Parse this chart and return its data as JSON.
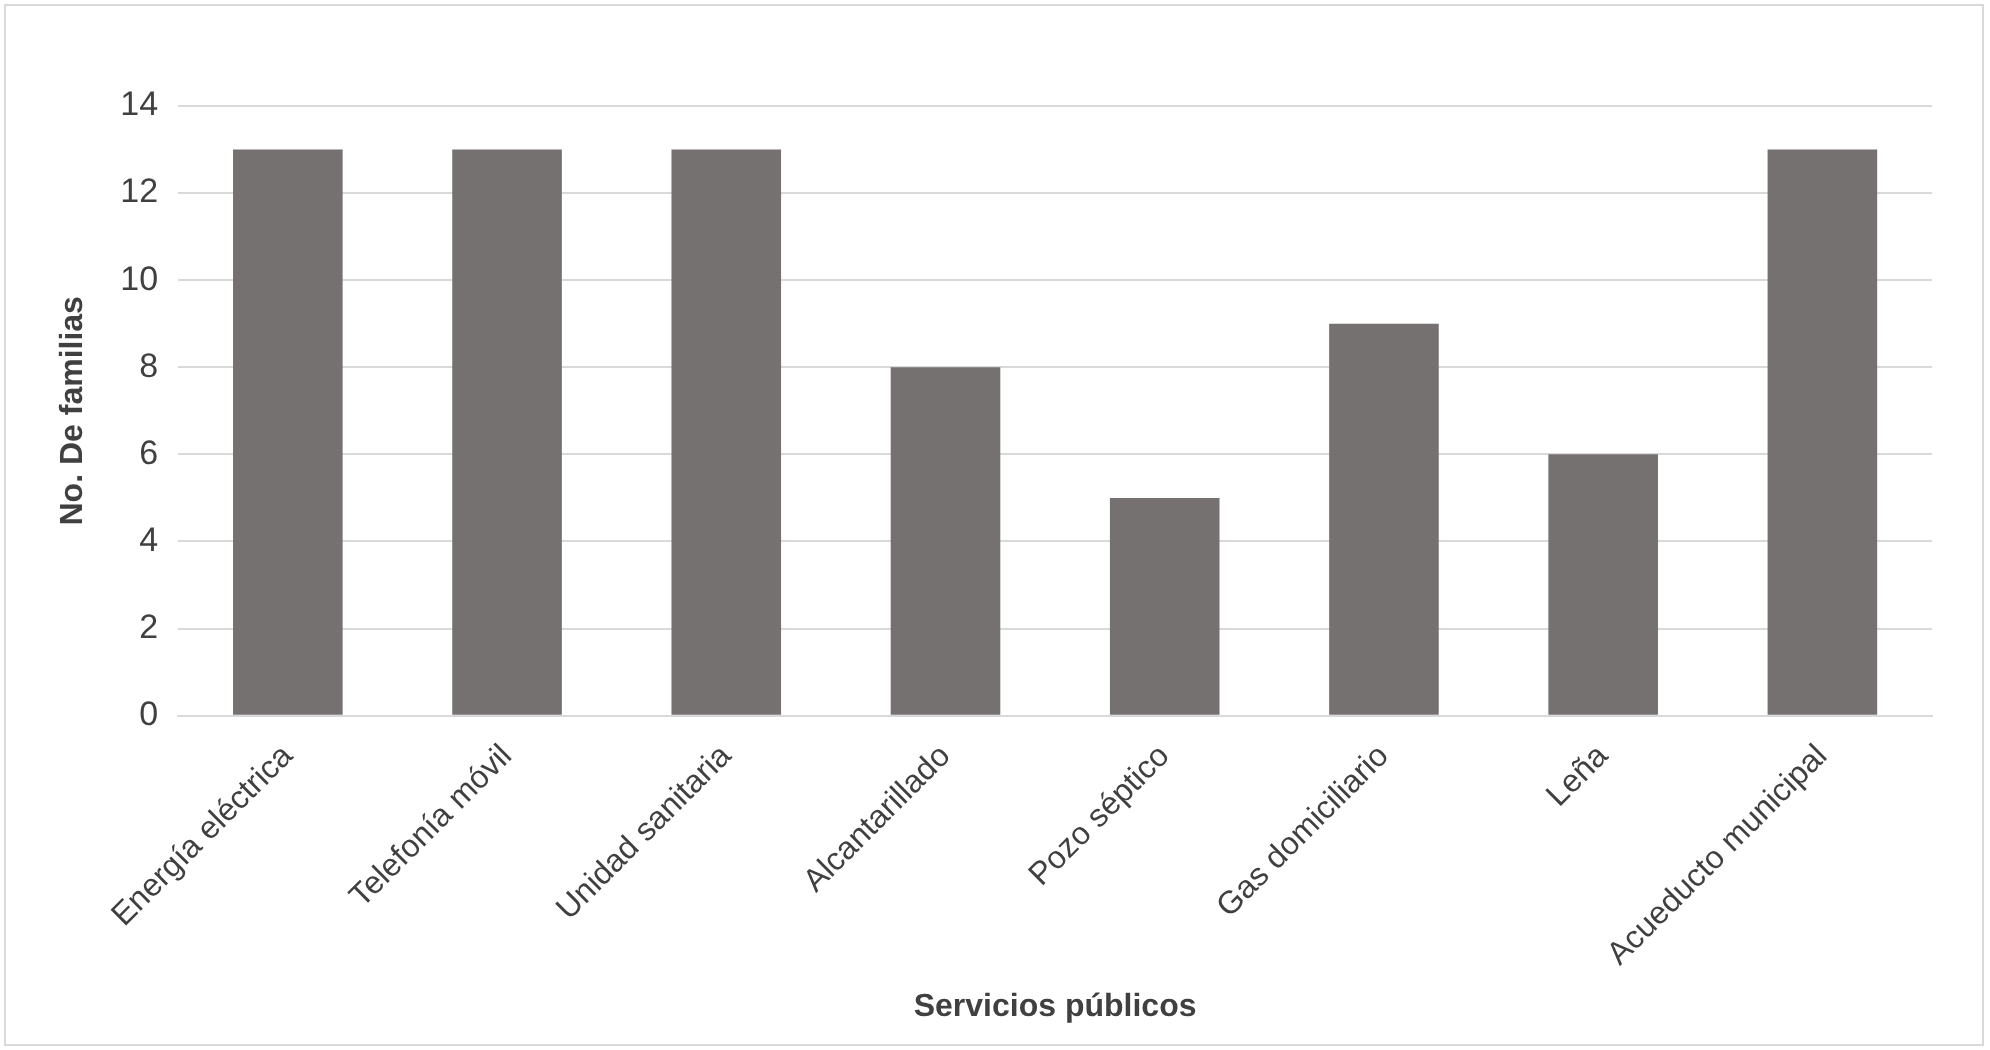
{
  "chart_data": {
    "type": "bar",
    "xlabel": "Servicios públicos",
    "ylabel": "No. De familias",
    "categories": [
      "Energía eléctrica",
      "Telefonía móvil",
      "Unidad sanitaria",
      "Alcantarillado",
      "Pozo séptico",
      "Gas domiciliario",
      "Leña",
      "Acueducto municipal"
    ],
    "values": [
      13,
      13,
      13,
      8,
      5,
      9,
      6,
      13
    ],
    "color": "#767171",
    "ylim": [
      0,
      14
    ],
    "yticks": [
      0,
      2,
      4,
      6,
      8,
      10,
      12,
      14
    ],
    "grid": "y",
    "legend": false
  }
}
